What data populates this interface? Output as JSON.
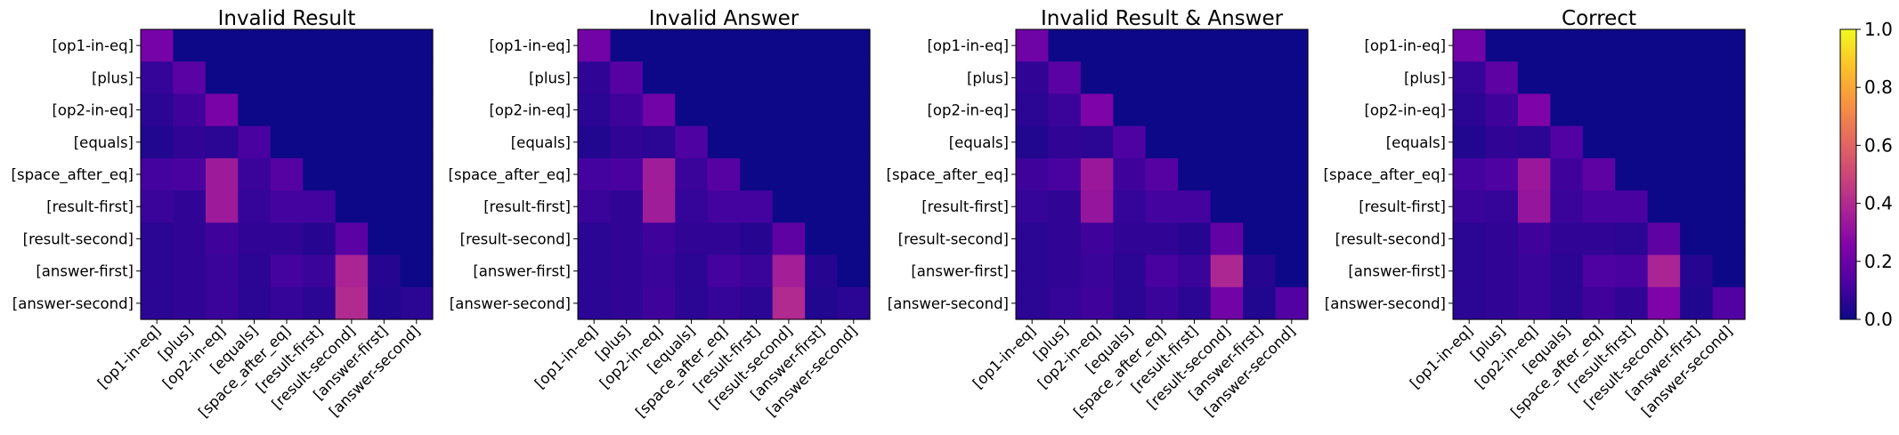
{
  "chart_data": [
    {
      "type": "heatmap",
      "title": "Invalid Result",
      "x_labels": [
        "[op1-in-eq]",
        "[plus]",
        "[op2-in-eq]",
        "[equals]",
        "[space_after_eq]",
        "[result-first]",
        "[result-second]",
        "[answer-first]",
        "[answer-second]"
      ],
      "y_labels": [
        "[op1-in-eq]",
        "[plus]",
        "[op2-in-eq]",
        "[equals]",
        "[space_after_eq]",
        "[result-first]",
        "[result-second]",
        "[answer-first]",
        "[answer-second]"
      ],
      "values": [
        [
          0.23,
          0,
          0,
          0,
          0,
          0,
          0,
          0,
          0
        ],
        [
          0.08,
          0.16,
          0,
          0,
          0,
          0,
          0,
          0,
          0
        ],
        [
          0.06,
          0.1,
          0.24,
          0,
          0,
          0,
          0,
          0,
          0
        ],
        [
          0.04,
          0.07,
          0.06,
          0.12,
          0,
          0,
          0,
          0,
          0
        ],
        [
          0.11,
          0.12,
          0.34,
          0.09,
          0.15,
          0,
          0,
          0,
          0
        ],
        [
          0.09,
          0.07,
          0.34,
          0.08,
          0.11,
          0.11,
          0,
          0,
          0
        ],
        [
          0.06,
          0.07,
          0.1,
          0.07,
          0.07,
          0.05,
          0.16,
          0,
          0
        ],
        [
          0.06,
          0.07,
          0.09,
          0.06,
          0.11,
          0.09,
          0.38,
          0.05,
          0
        ],
        [
          0.06,
          0.07,
          0.09,
          0.06,
          0.08,
          0.06,
          0.4,
          0.04,
          0.06
        ]
      ],
      "color_range": [
        0.0,
        1.0
      ]
    },
    {
      "type": "heatmap",
      "title": "Invalid Answer",
      "x_labels": [
        "[op1-in-eq]",
        "[plus]",
        "[op2-in-eq]",
        "[equals]",
        "[space_after_eq]",
        "[result-first]",
        "[result-second]",
        "[answer-first]",
        "[answer-second]"
      ],
      "y_labels": [
        "[op1-in-eq]",
        "[plus]",
        "[op2-in-eq]",
        "[equals]",
        "[space_after_eq]",
        "[result-first]",
        "[result-second]",
        "[answer-first]",
        "[answer-second]"
      ],
      "values": [
        [
          0.22,
          0,
          0,
          0,
          0,
          0,
          0,
          0,
          0
        ],
        [
          0.07,
          0.15,
          0,
          0,
          0,
          0,
          0,
          0,
          0
        ],
        [
          0.06,
          0.1,
          0.22,
          0,
          0,
          0,
          0,
          0,
          0
        ],
        [
          0.04,
          0.07,
          0.06,
          0.13,
          0,
          0,
          0,
          0,
          0
        ],
        [
          0.11,
          0.12,
          0.35,
          0.09,
          0.15,
          0,
          0,
          0,
          0
        ],
        [
          0.09,
          0.07,
          0.35,
          0.08,
          0.11,
          0.11,
          0,
          0,
          0
        ],
        [
          0.06,
          0.07,
          0.1,
          0.07,
          0.07,
          0.05,
          0.17,
          0,
          0
        ],
        [
          0.06,
          0.07,
          0.09,
          0.06,
          0.11,
          0.09,
          0.36,
          0.05,
          0
        ],
        [
          0.06,
          0.07,
          0.1,
          0.06,
          0.08,
          0.06,
          0.4,
          0.04,
          0.06
        ]
      ],
      "color_range": [
        0.0,
        1.0
      ]
    },
    {
      "type": "heatmap",
      "title": "Invalid Result & Answer",
      "x_labels": [
        "[op1-in-eq]",
        "[plus]",
        "[op2-in-eq]",
        "[equals]",
        "[space_after_eq]",
        "[result-first]",
        "[result-second]",
        "[answer-first]",
        "[answer-second]"
      ],
      "y_labels": [
        "[op1-in-eq]",
        "[plus]",
        "[op2-in-eq]",
        "[equals]",
        "[space_after_eq]",
        "[result-first]",
        "[result-second]",
        "[answer-first]",
        "[answer-second]"
      ],
      "values": [
        [
          0.21,
          0,
          0,
          0,
          0,
          0,
          0,
          0,
          0
        ],
        [
          0.07,
          0.16,
          0,
          0,
          0,
          0,
          0,
          0,
          0
        ],
        [
          0.06,
          0.09,
          0.25,
          0,
          0,
          0,
          0,
          0,
          0
        ],
        [
          0.04,
          0.07,
          0.06,
          0.13,
          0,
          0,
          0,
          0,
          0
        ],
        [
          0.1,
          0.12,
          0.33,
          0.1,
          0.15,
          0,
          0,
          0,
          0
        ],
        [
          0.08,
          0.07,
          0.32,
          0.08,
          0.11,
          0.11,
          0,
          0,
          0
        ],
        [
          0.06,
          0.07,
          0.1,
          0.07,
          0.07,
          0.05,
          0.18,
          0,
          0
        ],
        [
          0.06,
          0.07,
          0.09,
          0.06,
          0.12,
          0.09,
          0.39,
          0.05,
          0
        ],
        [
          0.06,
          0.08,
          0.1,
          0.06,
          0.09,
          0.06,
          0.22,
          0.04,
          0.14
        ]
      ],
      "color_range": [
        0.0,
        1.0
      ]
    },
    {
      "type": "heatmap",
      "title": "Correct",
      "x_labels": [
        "[op1-in-eq]",
        "[plus]",
        "[op2-in-eq]",
        "[equals]",
        "[space_after_eq]",
        "[result-first]",
        "[result-second]",
        "[answer-first]",
        "[answer-second]"
      ],
      "y_labels": [
        "[op1-in-eq]",
        "[plus]",
        "[op2-in-eq]",
        "[equals]",
        "[space_after_eq]",
        "[result-first]",
        "[result-second]",
        "[answer-first]",
        "[answer-second]"
      ],
      "values": [
        [
          0.22,
          0,
          0,
          0,
          0,
          0,
          0,
          0,
          0
        ],
        [
          0.08,
          0.17,
          0,
          0,
          0,
          0,
          0,
          0,
          0
        ],
        [
          0.06,
          0.1,
          0.25,
          0,
          0,
          0,
          0,
          0,
          0
        ],
        [
          0.04,
          0.07,
          0.06,
          0.14,
          0,
          0,
          0,
          0,
          0
        ],
        [
          0.11,
          0.13,
          0.33,
          0.1,
          0.17,
          0,
          0,
          0,
          0
        ],
        [
          0.09,
          0.08,
          0.32,
          0.09,
          0.12,
          0.12,
          0,
          0,
          0
        ],
        [
          0.06,
          0.07,
          0.1,
          0.07,
          0.07,
          0.06,
          0.17,
          0,
          0
        ],
        [
          0.06,
          0.07,
          0.09,
          0.06,
          0.13,
          0.12,
          0.38,
          0.05,
          0
        ],
        [
          0.06,
          0.07,
          0.09,
          0.06,
          0.1,
          0.07,
          0.25,
          0.04,
          0.14
        ]
      ],
      "color_range": [
        0.0,
        1.0
      ]
    }
  ],
  "colorbar": {
    "colormap": "plasma",
    "ticks": [
      "0.0",
      "0.2",
      "0.4",
      "0.6",
      "0.8",
      "1.0"
    ],
    "range": [
      0.0,
      1.0
    ]
  }
}
